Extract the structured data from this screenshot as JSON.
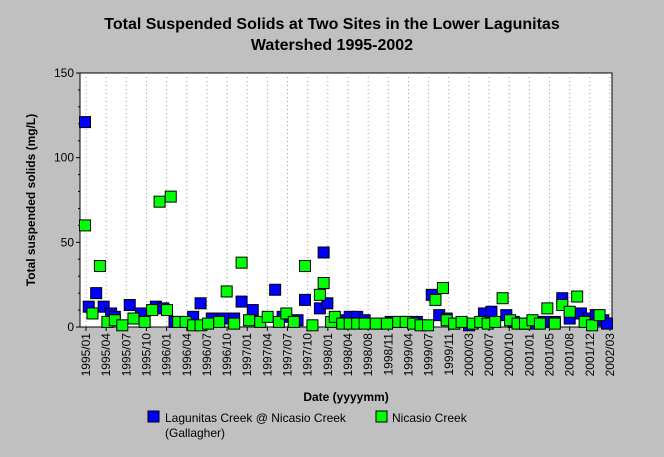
{
  "chart_data": {
    "type": "scatter",
    "title_line1": "Total Suspended Solids at Two Sites in the Lower Lagunitas",
    "title_line2": "Watershed 1995-2002",
    "xlabel": "Date (yyyymm)",
    "ylabel": "Total suspended solids (mg/L)",
    "ylim": [
      0,
      150
    ],
    "y_ticks": [
      "0",
      "50",
      "100",
      "150"
    ],
    "x_ticks": [
      "1995/01",
      "1995/04",
      "1995/07",
      "1995/10",
      "1996/01",
      "1996/04",
      "1996/07",
      "1996/10",
      "1997/01",
      "1997/04",
      "1997/07",
      "1997/10",
      "1998/01",
      "1998/04",
      "1998/08",
      "1998/11",
      "1999/04",
      "1999/07",
      "1999/11",
      "2000/03",
      "2000/07",
      "2000/10",
      "2001/01",
      "2001/05",
      "2001/08",
      "2001/12",
      "2002/03"
    ],
    "x_count": 106,
    "grid": "vertical dotted",
    "legend_position": "bottom",
    "colors": {
      "background": "#c0c0c0",
      "plot_bg": "#ffffff",
      "series1": "#0000ff",
      "series2": "#00ff00"
    },
    "series": [
      {
        "name": "Lagunitas Creek @ Nicasio Creek",
        "name_line2": "(Gallagher)",
        "color": "#0000ff",
        "points": [
          [
            0,
            121
          ],
          [
            1,
            12
          ],
          [
            3,
            20
          ],
          [
            5,
            12
          ],
          [
            7,
            8
          ],
          [
            8,
            6
          ],
          [
            12,
            13
          ],
          [
            15,
            8
          ],
          [
            19,
            12
          ],
          [
            21,
            11
          ],
          [
            24,
            3
          ],
          [
            29,
            6
          ],
          [
            31,
            14
          ],
          [
            34,
            5
          ],
          [
            37,
            5
          ],
          [
            40,
            5
          ],
          [
            42,
            15
          ],
          [
            45,
            10
          ],
          [
            51,
            22
          ],
          [
            53,
            6
          ],
          [
            57,
            4
          ],
          [
            59,
            16
          ],
          [
            63,
            11
          ],
          [
            64,
            44
          ],
          [
            65,
            14
          ],
          [
            68,
            4
          ],
          [
            71,
            6
          ],
          [
            73,
            6
          ],
          [
            75,
            4
          ],
          [
            79,
            2
          ],
          [
            82,
            3
          ],
          [
            86,
            3
          ],
          [
            89,
            3
          ],
          [
            93,
            19
          ],
          [
            95,
            7
          ],
          [
            97,
            5
          ],
          [
            99,
            2
          ],
          [
            103,
            1
          ],
          [
            107,
            8
          ],
          [
            109,
            9
          ],
          [
            113,
            7
          ],
          [
            115,
            3
          ],
          [
            117,
            2
          ],
          [
            119,
            2
          ],
          [
            121,
            2
          ],
          [
            123,
            3
          ],
          [
            126,
            3
          ],
          [
            128,
            17
          ],
          [
            130,
            5
          ],
          [
            133,
            8
          ],
          [
            135,
            5
          ],
          [
            137,
            7
          ],
          [
            139,
            4
          ],
          [
            140,
            2
          ]
        ]
      },
      {
        "name": "Nicasio Creek",
        "color": "#00ff00",
        "points": [
          [
            0,
            60
          ],
          [
            2,
            8
          ],
          [
            4,
            36
          ],
          [
            6,
            3
          ],
          [
            8,
            4
          ],
          [
            10,
            1
          ],
          [
            13,
            5
          ],
          [
            16,
            3
          ],
          [
            18,
            10
          ],
          [
            20,
            74
          ],
          [
            22,
            10
          ],
          [
            23,
            77
          ],
          [
            25,
            3
          ],
          [
            27,
            3
          ],
          [
            29,
            1
          ],
          [
            31,
            1
          ],
          [
            33,
            2
          ],
          [
            36,
            3
          ],
          [
            38,
            21
          ],
          [
            40,
            2
          ],
          [
            42,
            38
          ],
          [
            44,
            4
          ],
          [
            47,
            3
          ],
          [
            49,
            6
          ],
          [
            52,
            3
          ],
          [
            54,
            8
          ],
          [
            56,
            3
          ],
          [
            59,
            36
          ],
          [
            61,
            1
          ],
          [
            63,
            19
          ],
          [
            64,
            26
          ],
          [
            66,
            3
          ],
          [
            67,
            6
          ],
          [
            69,
            2
          ],
          [
            71,
            2
          ],
          [
            73,
            2
          ],
          [
            75,
            2
          ],
          [
            78,
            2
          ],
          [
            81,
            2
          ],
          [
            84,
            3
          ],
          [
            86,
            3
          ],
          [
            88,
            2
          ],
          [
            90,
            1
          ],
          [
            92,
            1
          ],
          [
            94,
            16
          ],
          [
            96,
            23
          ],
          [
            97,
            4
          ],
          [
            99,
            2
          ],
          [
            101,
            3
          ],
          [
            104,
            2
          ],
          [
            106,
            3
          ],
          [
            108,
            2
          ],
          [
            110,
            3
          ],
          [
            112,
            17
          ],
          [
            114,
            4
          ],
          [
            116,
            2
          ],
          [
            118,
            2
          ],
          [
            120,
            4
          ],
          [
            122,
            2
          ],
          [
            124,
            11
          ],
          [
            126,
            2
          ],
          [
            128,
            13
          ],
          [
            130,
            9
          ],
          [
            132,
            18
          ],
          [
            134,
            3
          ],
          [
            136,
            1
          ],
          [
            138,
            7
          ]
        ]
      }
    ]
  }
}
